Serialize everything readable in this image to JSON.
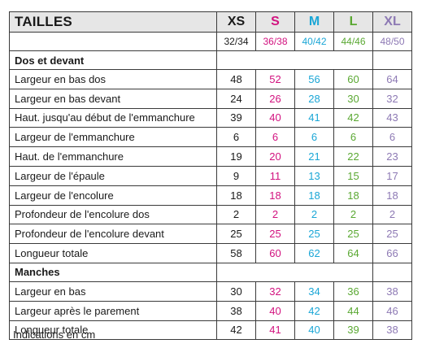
{
  "header": {
    "title": "TAILLES",
    "sizes": [
      {
        "label": "XS",
        "range": "32/34",
        "color": "#1a1a1a"
      },
      {
        "label": "S",
        "range": "36/38",
        "color": "#d2127f"
      },
      {
        "label": "M",
        "range": "40/42",
        "color": "#1aa6d6"
      },
      {
        "label": "L",
        "range": "44/46",
        "color": "#5aa832"
      },
      {
        "label": "XL",
        "range": "48/50",
        "color": "#8d79b4"
      }
    ]
  },
  "sections": [
    {
      "title": "Dos et devant",
      "rows": [
        {
          "label": "Largeur en bas dos",
          "values": [
            "48",
            "52",
            "56",
            "60",
            "64"
          ]
        },
        {
          "label": "Largeur en bas devant",
          "values": [
            "24",
            "26",
            "28",
            "30",
            "32"
          ]
        },
        {
          "label": "Haut. jusqu'au début de l'emmanchure",
          "values": [
            "39",
            "40",
            "41",
            "42",
            "43"
          ]
        },
        {
          "label": "Largeur de l'emmanchure",
          "values": [
            "6",
            "6",
            "6",
            "6",
            "6"
          ]
        },
        {
          "label": "Haut. de l'emmanchure",
          "values": [
            "19",
            "20",
            "21",
            "22",
            "23"
          ]
        },
        {
          "label": "Largeur de l'épaule",
          "values": [
            "9",
            "11",
            "13",
            "15",
            "17"
          ]
        },
        {
          "label": "Largeur de l'encolure",
          "values": [
            "18",
            "18",
            "18",
            "18",
            "18"
          ]
        },
        {
          "label": "Profondeur de l'encolure dos",
          "values": [
            "2",
            "2",
            "2",
            "2",
            "2"
          ]
        },
        {
          "label": "Profondeur de l'encolure devant",
          "values": [
            "25",
            "25",
            "25",
            "25",
            "25"
          ]
        },
        {
          "label": "Longueur totale",
          "values": [
            "58",
            "60",
            "62",
            "64",
            "66"
          ]
        }
      ]
    },
    {
      "title": "Manches",
      "rows": [
        {
          "label": "Largeur en bas",
          "values": [
            "30",
            "32",
            "34",
            "36",
            "38"
          ]
        },
        {
          "label": "Largeur après le parement",
          "values": [
            "38",
            "40",
            "42",
            "44",
            "46"
          ]
        },
        {
          "label": "Longueur totale",
          "values": [
            "42",
            "41",
            "40",
            "39",
            "38"
          ]
        }
      ]
    }
  ],
  "note": "Indications en cm"
}
